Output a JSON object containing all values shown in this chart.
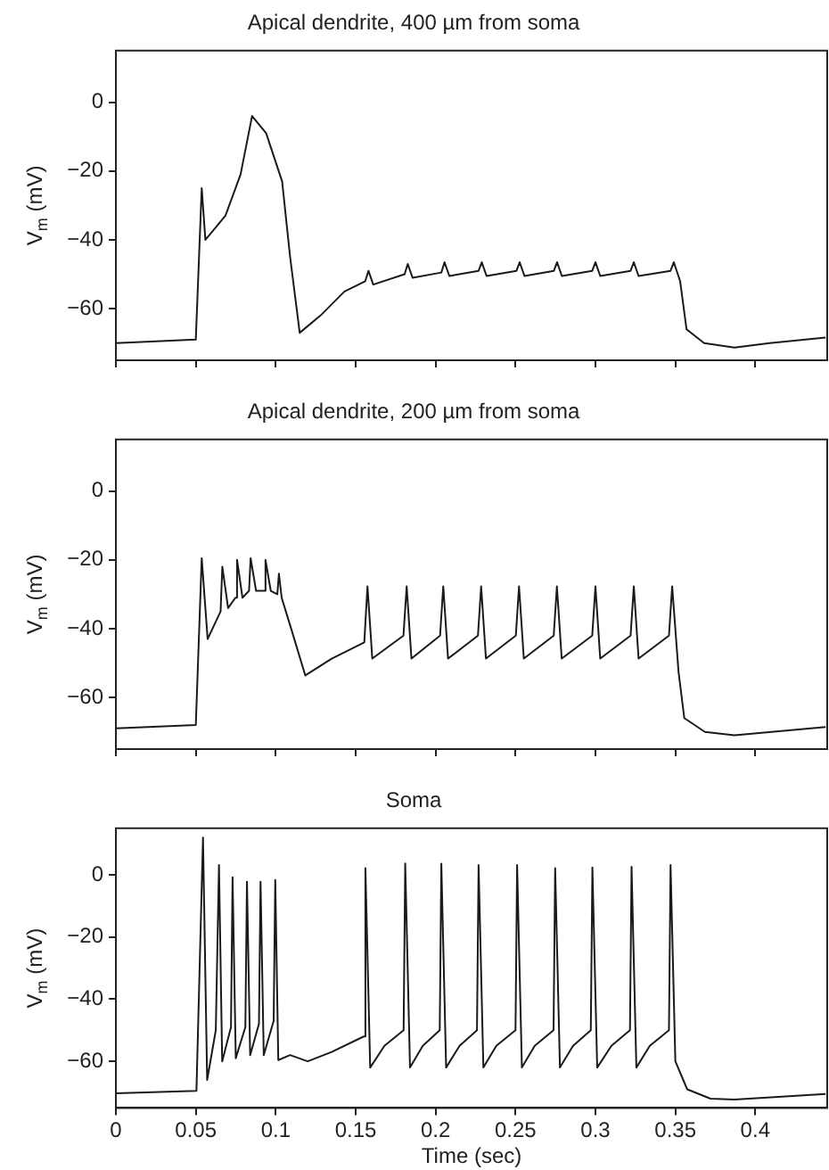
{
  "chart_data": [
    {
      "type": "line",
      "title": "Apical dendrite, 400 µm from soma",
      "ylabel": "V$_{m}$ (mV)",
      "xlim": [
        0,
        0.445
      ],
      "ylim": [
        -75,
        15
      ],
      "xticks": [
        {
          "value": 0,
          "label": null
        },
        {
          "value": 0.05,
          "label": null
        },
        {
          "value": 0.1,
          "label": null
        },
        {
          "value": 0.15,
          "label": null
        },
        {
          "value": 0.2,
          "label": null
        },
        {
          "value": 0.25,
          "label": null
        },
        {
          "value": 0.3,
          "label": null
        },
        {
          "value": 0.35,
          "label": null
        },
        {
          "value": 0.4,
          "label": null
        }
      ],
      "yticks": [
        0,
        -20,
        -40,
        -60
      ],
      "tick_labels": "y",
      "grid": false,
      "legend": false,
      "marker": "none",
      "line_style": "solid",
      "series": [
        {
          "color": "#1a1a1a",
          "x": [
            0,
            0.05,
            0.0537,
            0.056,
            0.0685,
            0.078,
            0.0852,
            0.094,
            0.104,
            0.109,
            0.115,
            0.128,
            0.143,
            0.156,
            0.158,
            0.161,
            0.1806,
            0.1826,
            0.1856,
            0.2036,
            0.2056,
            0.2086,
            0.2269,
            0.2289,
            0.2319,
            0.2506,
            0.2526,
            0.2556,
            0.274,
            0.276,
            0.279,
            0.298,
            0.3,
            0.303,
            0.322,
            0.324,
            0.327,
            0.347,
            0.349,
            0.353,
            0.357,
            0.368,
            0.387,
            0.409,
            0.444
          ],
          "values": [
            -70,
            -69,
            -25,
            -40,
            -33,
            -21,
            -4,
            -9,
            -23,
            -45,
            -67,
            -62,
            -55,
            -52,
            -49,
            -53,
            -50,
            -47,
            -51,
            -49.5,
            -46.5,
            -50.5,
            -49,
            -46.5,
            -50.5,
            -49,
            -46.5,
            -50.5,
            -49,
            -46.5,
            -50.5,
            -49,
            -46.5,
            -50.5,
            -49,
            -46.5,
            -50.5,
            -49,
            -46.5,
            -52,
            -66,
            -70,
            -71.3,
            -70,
            -68.4
          ]
        }
      ]
    },
    {
      "type": "line",
      "title": "Apical dendrite, 200 µm from soma",
      "ylabel": "V$_{m}$ (mV)",
      "xlim": [
        0,
        0.445
      ],
      "ylim": [
        -75,
        15
      ],
      "xticks": [
        {
          "value": 0,
          "label": null
        },
        {
          "value": 0.05,
          "label": null
        },
        {
          "value": 0.1,
          "label": null
        },
        {
          "value": 0.15,
          "label": null
        },
        {
          "value": 0.2,
          "label": null
        },
        {
          "value": 0.25,
          "label": null
        },
        {
          "value": 0.3,
          "label": null
        },
        {
          "value": 0.35,
          "label": null
        },
        {
          "value": 0.4,
          "label": null
        }
      ],
      "yticks": [
        0,
        -20,
        -40,
        -60
      ],
      "tick_labels": "y",
      "grid": false,
      "legend": false,
      "marker": "none",
      "line_style": "solid",
      "series": [
        {
          "color": "#1a1a1a",
          "x": [
            0,
            0.05,
            0.0537,
            0.0574,
            0.0655,
            0.0666,
            0.0702,
            0.0748,
            0.0758,
            0.0792,
            0.0833,
            0.0843,
            0.0877,
            0.0926,
            0.0936,
            0.0969,
            0.101,
            0.102,
            0.1037,
            0.109,
            0.1185,
            0.135,
            0.1554,
            0.1574,
            0.1604,
            0.1799,
            0.1819,
            0.1849,
            0.2028,
            0.2048,
            0.2078,
            0.2265,
            0.2285,
            0.2315,
            0.2502,
            0.2522,
            0.2552,
            0.2739,
            0.2759,
            0.2789,
            0.298,
            0.3,
            0.303,
            0.322,
            0.324,
            0.327,
            0.346,
            0.348,
            0.352,
            0.3556,
            0.3685,
            0.387,
            0.444
          ],
          "values": [
            -69,
            -68,
            -19.5,
            -43,
            -35,
            -22,
            -34,
            -31,
            -20,
            -31,
            -29,
            -19.5,
            -29,
            -29,
            -20,
            -29,
            -30,
            -24,
            -31,
            -39,
            -53.6,
            -48.7,
            -44,
            -27.7,
            -48.7,
            -42,
            -27.7,
            -48.7,
            -42,
            -27.7,
            -48.7,
            -42,
            -27.7,
            -48.7,
            -42,
            -27.7,
            -48.7,
            -42,
            -27.7,
            -48.7,
            -42,
            -27.7,
            -48.7,
            -42,
            -27.7,
            -48.7,
            -42,
            -27.7,
            -52.6,
            -66,
            -70,
            -71,
            -68.6
          ]
        }
      ]
    },
    {
      "type": "line",
      "title": "Soma",
      "xlabel": "Time (sec)",
      "ylabel": "V$_{m}$ (mV)",
      "xlim": [
        0,
        0.445
      ],
      "ylim": [
        -75,
        15
      ],
      "xticks": [
        0,
        0.05,
        0.1,
        0.15,
        0.2,
        0.25,
        0.3,
        0.35,
        0.4
      ],
      "yticks": [
        0,
        -20,
        -40,
        -60
      ],
      "grid": false,
      "legend": false,
      "marker": "none",
      "line_style": "solid",
      "series": [
        {
          "color": "#1a1a1a",
          "x": [
            0,
            0.0504,
            0.0545,
            0.0571,
            0.0625,
            0.0645,
            0.0665,
            0.072,
            0.073,
            0.075,
            0.081,
            0.082,
            0.084,
            0.0895,
            0.0905,
            0.0925,
            0.0987,
            0.0997,
            0.1016,
            0.109,
            0.12,
            0.135,
            0.1551,
            0.1561,
            0.1591,
            0.168,
            0.18,
            0.181,
            0.184,
            0.192,
            0.2026,
            0.2036,
            0.2066,
            0.215,
            0.2259,
            0.2269,
            0.2299,
            0.238,
            0.25,
            0.251,
            0.254,
            0.262,
            0.2738,
            0.2748,
            0.2778,
            0.286,
            0.2971,
            0.2981,
            0.3011,
            0.31,
            0.3216,
            0.3226,
            0.3256,
            0.334,
            0.346,
            0.347,
            0.35,
            0.3574,
            0.372,
            0.387,
            0.444
          ],
          "values": [
            -70.3,
            -69.5,
            12,
            -66,
            -50,
            3.2,
            -60,
            -49,
            -0.8,
            -59,
            -49,
            -2.2,
            -58,
            -48,
            -2.2,
            -58,
            -47,
            -1.6,
            -59.6,
            -58,
            -60,
            -57,
            -52,
            2.2,
            -62,
            -55,
            -50,
            3.7,
            -62,
            -55,
            -50,
            3.6,
            -62,
            -55,
            -50,
            3.2,
            -62,
            -55,
            -50,
            3.2,
            -62,
            -55,
            -50,
            2.2,
            -62,
            -55,
            -50,
            2.4,
            -62,
            -55,
            -50,
            2.6,
            -62,
            -55,
            -50,
            3.2,
            -60,
            -69,
            -72,
            -72.3,
            -70.5
          ]
        }
      ]
    }
  ]
}
